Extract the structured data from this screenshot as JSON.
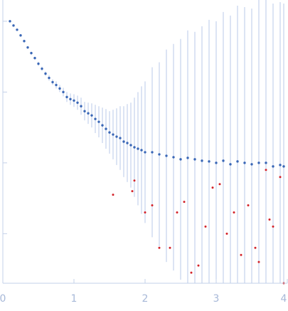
{
  "colors": {
    "positive_points": "#3a67b6",
    "negative_points": "#d3232a",
    "error_bars": "#b8c9e8",
    "axis": "#c3d0e8",
    "tick_labels": "#a7b8d8"
  },
  "chart_data": {
    "type": "scatter",
    "title": "",
    "xlabel": "",
    "ylabel": "",
    "xlim": [
      0,
      4
    ],
    "ylim": [
      -3.7,
      0.3
    ],
    "y_scale": "log10",
    "grid": false,
    "legend": "none",
    "x_ticks": [
      "0",
      "1",
      "2",
      "3",
      "4"
    ],
    "y_ticks": [
      0,
      -1,
      -2,
      -3
    ],
    "series": [
      {
        "color": "#3a67b6",
        "x": [
          0.1,
          0.15,
          0.2,
          0.25,
          0.3,
          0.35,
          0.4,
          0.45,
          0.5,
          0.55,
          0.6,
          0.65,
          0.7,
          0.75,
          0.8,
          0.85,
          0.9,
          0.95,
          1.0,
          1.05,
          1.1,
          1.15,
          1.2,
          1.25,
          1.3,
          1.35,
          1.4,
          1.45,
          1.5,
          1.55,
          1.6,
          1.65,
          1.7,
          1.75,
          1.8,
          1.85,
          1.9,
          1.95,
          2.0,
          2.1,
          2.2,
          2.3,
          2.4,
          2.5,
          2.6,
          2.7,
          2.8,
          2.9,
          3.0,
          3.1,
          3.2,
          3.3,
          3.4,
          3.5,
          3.6,
          3.7,
          3.8,
          3.9,
          3.95
        ],
        "y": [
          0.0,
          -0.06,
          -0.12,
          -0.2,
          -0.28,
          -0.37,
          -0.45,
          -0.52,
          -0.6,
          -0.67,
          -0.74,
          -0.8,
          -0.86,
          -0.9,
          -0.95,
          -1.0,
          -1.07,
          -1.1,
          -1.12,
          -1.15,
          -1.2,
          -1.27,
          -1.3,
          -1.33,
          -1.38,
          -1.42,
          -1.47,
          -1.52,
          -1.57,
          -1.6,
          -1.63,
          -1.65,
          -1.7,
          -1.72,
          -1.75,
          -1.78,
          -1.8,
          -1.82,
          -1.85,
          -1.85,
          -1.88,
          -1.9,
          -1.92,
          -1.95,
          -1.93,
          -1.95,
          -1.97,
          -1.98,
          -2.0,
          -1.97,
          -2.02,
          -1.98,
          -2.0,
          -2.02,
          -2.0,
          -2.0,
          -2.05,
          -2.03,
          -2.05
        ],
        "error": [
          0.01,
          0.01,
          0.01,
          0.01,
          0.02,
          0.02,
          0.02,
          0.02,
          0.03,
          0.03,
          0.03,
          0.04,
          0.04,
          0.05,
          0.05,
          0.06,
          0.07,
          0.08,
          0.09,
          0.1,
          0.12,
          0.13,
          0.15,
          0.17,
          0.2,
          0.22,
          0.25,
          0.28,
          0.3,
          0.35,
          0.4,
          0.45,
          0.5,
          0.55,
          0.6,
          0.7,
          0.8,
          0.9,
          1.0,
          1.2,
          1.3,
          1.5,
          1.6,
          1.7,
          1.8,
          1.8,
          1.9,
          2.0,
          2.0,
          2.1,
          2.1,
          2.2,
          2.2,
          2.2,
          2.3,
          2.3,
          2.3,
          2.3,
          2.3
        ]
      },
      {
        "color": "#d3232a",
        "x": [
          1.55,
          1.82,
          1.85,
          2.0,
          2.1,
          2.2,
          2.35,
          2.45,
          2.55,
          2.65,
          2.75,
          2.85,
          2.95,
          3.05,
          3.15,
          3.25,
          3.35,
          3.45,
          3.55,
          3.6,
          3.7,
          3.75,
          3.8,
          3.9,
          3.95
        ],
        "y": [
          -2.45,
          -2.4,
          -2.25,
          -2.7,
          -2.6,
          -3.2,
          -3.2,
          -2.7,
          -2.55,
          -3.55,
          -3.45,
          -2.9,
          -2.35,
          -2.3,
          -3.0,
          -2.7,
          -3.3,
          -2.6,
          -3.2,
          -3.4,
          -2.1,
          -2.8,
          -2.9,
          -2.2,
          -3.7
        ]
      }
    ]
  }
}
